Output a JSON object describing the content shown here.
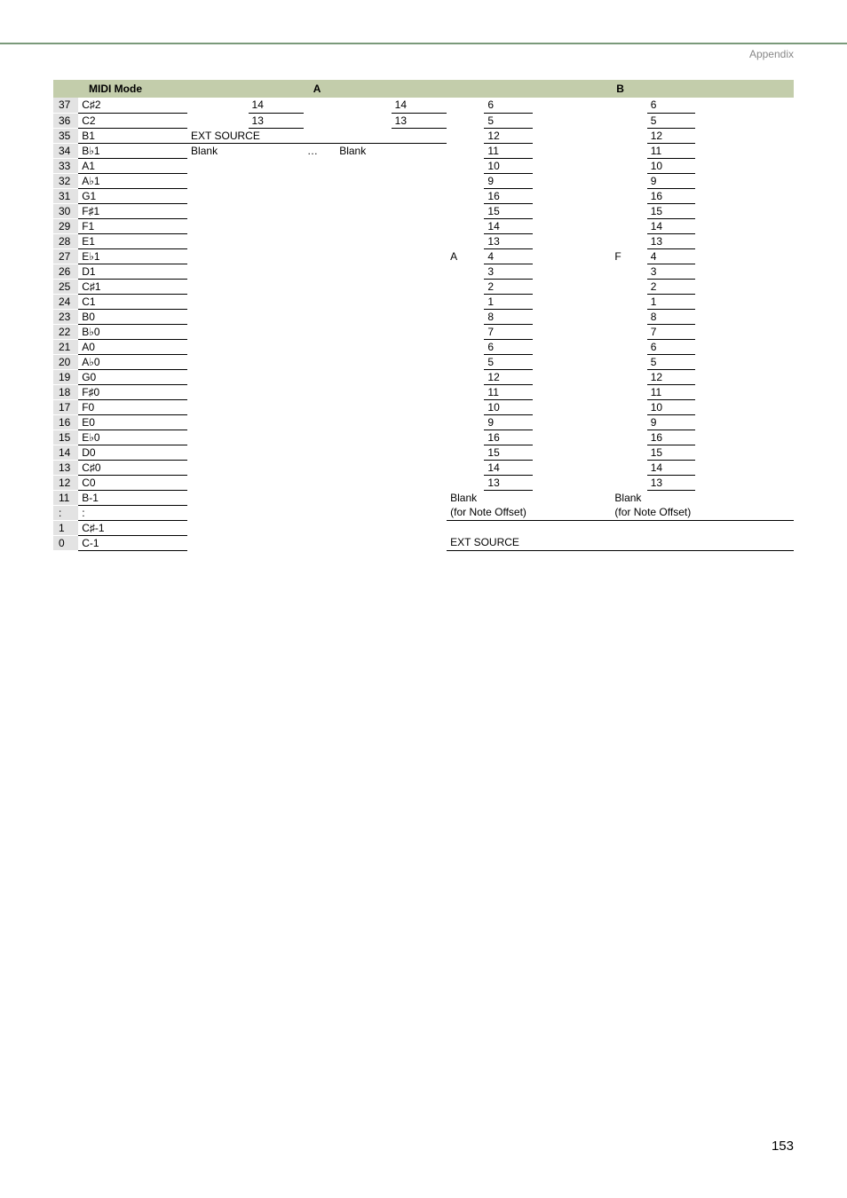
{
  "header": {
    "section": "Appendix"
  },
  "footer": {
    "page_number": "153"
  },
  "table": {
    "headers": {
      "midi": "MIDI Mode",
      "a": "A",
      "b": "B"
    },
    "rows": [
      {
        "idx": "37",
        "note": "C♯2",
        "a_g": "",
        "a_n": "14",
        "a_g2": "",
        "a_n2": "14",
        "b_g": "",
        "b_n": "6",
        "b_g2": "",
        "b_n2": "6"
      },
      {
        "idx": "36",
        "note": "C2",
        "a_g": "",
        "a_n": "13",
        "a_g2": "",
        "a_n2": "13",
        "b_g": "",
        "b_n": "5",
        "b_g2": "",
        "b_n2": "5"
      },
      {
        "idx": "35",
        "note": "B1",
        "a_g": "EXT SOURCE",
        "a_n": "",
        "a_g2": "",
        "a_n2": "",
        "b_g": "",
        "b_n": "12",
        "b_g2": "",
        "b_n2": "12"
      },
      {
        "idx": "34",
        "note": "B♭1",
        "a_g": "Blank",
        "a_n": "",
        "a_g2": "…",
        "a_n2": "Blank",
        "b_g": "",
        "b_n": "11",
        "b_g2": "",
        "b_n2": "11"
      },
      {
        "idx": "33",
        "note": "A1",
        "b_n": "10",
        "b_n2": "10"
      },
      {
        "idx": "32",
        "note": "A♭1",
        "b_n": "9",
        "b_n2": "9"
      },
      {
        "idx": "31",
        "note": "G1",
        "b_n": "16",
        "b_n2": "16"
      },
      {
        "idx": "30",
        "note": "F♯1",
        "b_n": "15",
        "b_n2": "15"
      },
      {
        "idx": "29",
        "note": "F1",
        "b_n": "14",
        "b_n2": "14"
      },
      {
        "idx": "28",
        "note": "E1",
        "b_n": "13",
        "b_n2": "13"
      },
      {
        "idx": "27",
        "note": "E♭1",
        "b_lab": "A",
        "b_n": "4",
        "b_g2": "F",
        "b_n2": "4"
      },
      {
        "idx": "26",
        "note": "D1",
        "b_n": "3",
        "b_n2": "3"
      },
      {
        "idx": "25",
        "note": "C♯1",
        "b_n": "2",
        "b_n2": "2"
      },
      {
        "idx": "24",
        "note": "C1",
        "b_n": "1",
        "b_n2": "1"
      },
      {
        "idx": "23",
        "note": "B0",
        "b_n": "8",
        "b_n2": "8"
      },
      {
        "idx": "22",
        "note": "B♭0",
        "b_n": "7",
        "b_n2": "7"
      },
      {
        "idx": "21",
        "note": "A0",
        "b_n": "6",
        "b_n2": "6"
      },
      {
        "idx": "20",
        "note": "A♭0",
        "b_n": "5",
        "b_n2": "5"
      },
      {
        "idx": "19",
        "note": "G0",
        "b_n": "12",
        "b_n2": "12"
      },
      {
        "idx": "18",
        "note": "F♯0",
        "b_n": "11",
        "b_n2": "11"
      },
      {
        "idx": "17",
        "note": "F0",
        "b_n": "10",
        "b_n2": "10"
      },
      {
        "idx": "16",
        "note": "E0",
        "b_n": "9",
        "b_n2": "9"
      },
      {
        "idx": "15",
        "note": "E♭0",
        "b_n": "16",
        "b_n2": "16"
      },
      {
        "idx": "14",
        "note": "D0",
        "b_n": "15",
        "b_n2": "15"
      },
      {
        "idx": "13",
        "note": "C♯0",
        "b_n": "14",
        "b_n2": "14"
      },
      {
        "idx": "12",
        "note": "C0",
        "b_n": "13",
        "b_n2": "13"
      },
      {
        "idx": "11",
        "note": "B-1",
        "b_blank1": "Blank",
        "b_blank2": "Blank"
      },
      {
        "idx": ":",
        "note": ":",
        "b_off1": "(for Note Offset)",
        "b_off2": "(for Note Offset)"
      },
      {
        "idx": "1",
        "note": "C♯-1"
      },
      {
        "idx": "0",
        "note": "C-1",
        "b_ext": "EXT SOURCE"
      }
    ]
  }
}
